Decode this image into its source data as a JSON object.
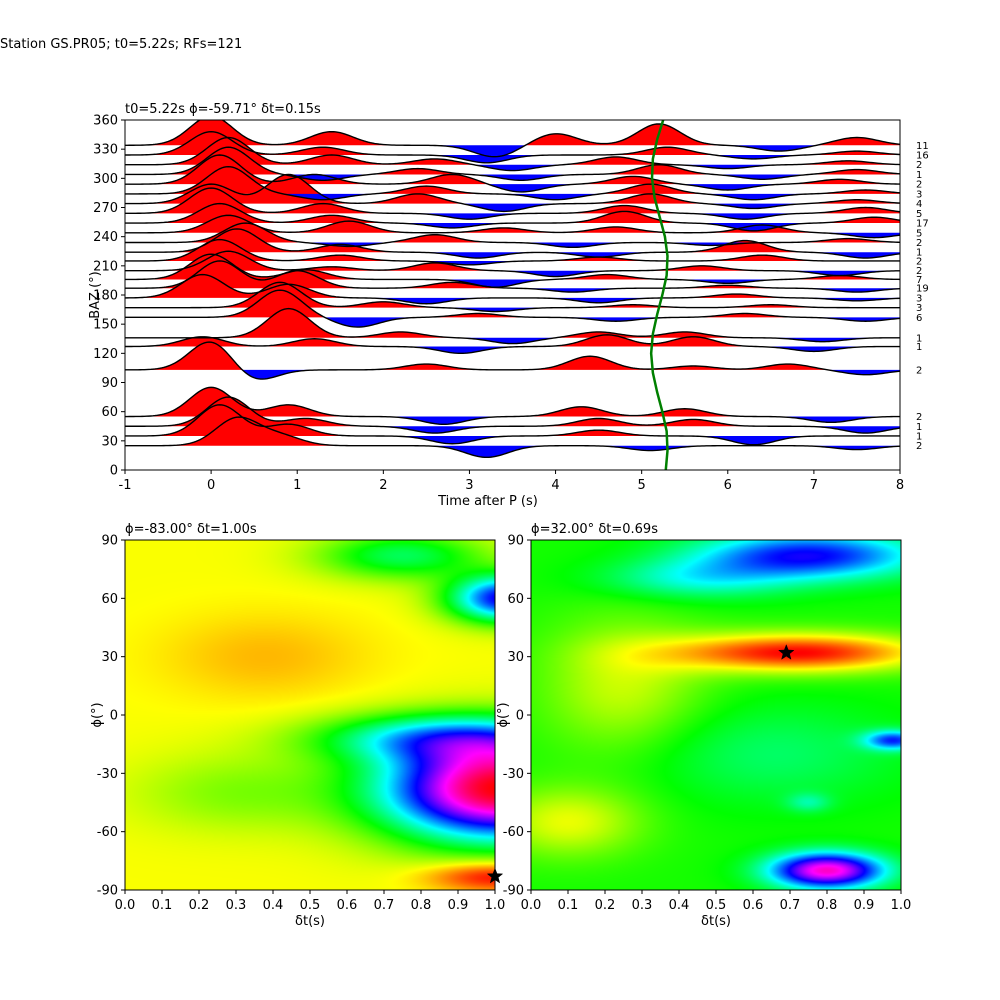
{
  "figure": {
    "title": "Station GS.PR05; t0=5.22s; RFs=121"
  },
  "chart_data": [
    {
      "type": "line",
      "id": "rf-traces",
      "title": "t0=5.22s ϕ=-59.71° δt=0.15s",
      "xlabel": "Time after P (s)",
      "ylabel": "BAZ (°)",
      "xlim": [
        -1,
        8
      ],
      "ylim": [
        0,
        360
      ],
      "xticks": [
        -1,
        0,
        1,
        2,
        3,
        4,
        5,
        6,
        7,
        8
      ],
      "yticks": [
        0,
        30,
        60,
        90,
        120,
        150,
        180,
        210,
        240,
        270,
        300,
        330,
        360
      ],
      "fill_positive_color": "#ff0000",
      "fill_negative_color": "#0000ff",
      "trace_color": "#000000",
      "grid": false,
      "traces": [
        {
          "baz": 25,
          "count": "2",
          "peaks": [
            [
              0.3,
              28
            ],
            [
              0.8,
              10
            ],
            [
              3.2,
              -12
            ],
            [
              5.1,
              -5
            ],
            [
              7.5,
              -4
            ]
          ]
        },
        {
          "baz": 35,
          "count": "1",
          "peaks": [
            [
              0.1,
              32
            ],
            [
              0.9,
              12
            ],
            [
              2.8,
              -8
            ],
            [
              4.5,
              6
            ],
            [
              6.3,
              -9
            ]
          ]
        },
        {
          "baz": 45,
          "count": "1",
          "peaks": [
            [
              0.2,
              30
            ],
            [
              1.1,
              8
            ],
            [
              2.6,
              -7
            ],
            [
              4.5,
              8
            ],
            [
              5.6,
              7
            ],
            [
              7.6,
              -7
            ]
          ]
        },
        {
          "baz": 55,
          "count": "2",
          "peaks": [
            [
              0.0,
              30
            ],
            [
              0.9,
              12
            ],
            [
              2.7,
              -8
            ],
            [
              4.3,
              10
            ],
            [
              5.5,
              8
            ],
            [
              7.2,
              -6
            ]
          ]
        },
        {
          "baz": 103,
          "count": "2",
          "peaks": [
            [
              0.0,
              30
            ],
            [
              0.5,
              -12
            ],
            [
              2.5,
              6
            ],
            [
              4.4,
              14
            ],
            [
              5.6,
              4
            ],
            [
              6.7,
              6
            ],
            [
              7.6,
              -5
            ]
          ]
        },
        {
          "baz": 127,
          "count": "1",
          "peaks": [
            [
              -0.1,
              10
            ],
            [
              1.2,
              8
            ],
            [
              2.9,
              -7
            ],
            [
              4.6,
              12
            ],
            [
              5.6,
              10
            ],
            [
              7.0,
              -5
            ]
          ]
        },
        {
          "baz": 136,
          "count": "1",
          "peaks": [
            [
              0.9,
              30
            ],
            [
              2.2,
              6
            ],
            [
              3.5,
              -6
            ],
            [
              4.5,
              6
            ],
            [
              5.5,
              6
            ],
            [
              7.1,
              -4
            ]
          ]
        },
        {
          "baz": 157,
          "count": "6",
          "peaks": [
            [
              0.8,
              28
            ],
            [
              1.7,
              -10
            ],
            [
              3.1,
              4
            ],
            [
              4.7,
              -4
            ],
            [
              6.2,
              4
            ],
            [
              7.6,
              -4
            ]
          ]
        },
        {
          "baz": 167,
          "count": "3",
          "peaks": [
            [
              0.8,
              26
            ],
            [
              2.0,
              6
            ],
            [
              3.3,
              -4
            ],
            [
              4.9,
              3
            ],
            [
              6.5,
              3
            ]
          ]
        },
        {
          "baz": 177,
          "count": "3",
          "peaks": [
            [
              -0.1,
              24
            ],
            [
              0.9,
              14
            ],
            [
              2.5,
              -6
            ],
            [
              4.5,
              -5
            ],
            [
              6.1,
              4
            ],
            [
              7.5,
              -3
            ]
          ]
        },
        {
          "baz": 187,
          "count": "19",
          "peaks": [
            [
              0.1,
              28
            ],
            [
              1.0,
              18
            ],
            [
              2.8,
              6
            ],
            [
              4.2,
              -4
            ],
            [
              6.0,
              3
            ],
            [
              7.5,
              -4
            ]
          ]
        },
        {
          "baz": 196,
          "count": "7",
          "peaks": [
            [
              0.0,
              26
            ],
            [
              1.1,
              10
            ],
            [
              3.3,
              -8
            ],
            [
              4.6,
              5
            ],
            [
              6.0,
              -4
            ],
            [
              7.3,
              4
            ]
          ]
        },
        {
          "baz": 205,
          "count": "2",
          "peaks": [
            [
              0.2,
              20
            ],
            [
              1.4,
              4
            ],
            [
              2.6,
              8
            ],
            [
              4.0,
              -6
            ],
            [
              5.7,
              5
            ],
            [
              7.3,
              -5
            ]
          ]
        },
        {
          "baz": 215,
          "count": "2",
          "peaks": [
            [
              0.1,
              22
            ],
            [
              1.5,
              6
            ],
            [
              3.0,
              -4
            ],
            [
              4.5,
              4
            ],
            [
              6.4,
              6
            ]
          ]
        },
        {
          "baz": 224,
          "count": "1",
          "peaks": [
            [
              0.3,
              24
            ],
            [
              1.5,
              8
            ],
            [
              3.1,
              -6
            ],
            [
              4.5,
              -5
            ],
            [
              6.2,
              12
            ],
            [
              7.6,
              -6
            ]
          ]
        },
        {
          "baz": 234,
          "count": "2",
          "peaks": [
            [
              0.4,
              20
            ],
            [
              1.6,
              -4
            ],
            [
              2.6,
              8
            ],
            [
              4.2,
              -5
            ],
            [
              5.8,
              -3
            ],
            [
              7.4,
              4
            ]
          ]
        },
        {
          "baz": 244,
          "count": "5",
          "peaks": [
            [
              0.2,
              18
            ],
            [
              1.6,
              12
            ],
            [
              3.4,
              5
            ],
            [
              4.7,
              6
            ],
            [
              6.4,
              8
            ],
            [
              7.7,
              -5
            ]
          ]
        },
        {
          "baz": 254,
          "count": "17",
          "peaks": [
            [
              0.1,
              20
            ],
            [
              1.4,
              8
            ],
            [
              2.8,
              -5
            ],
            [
              4.8,
              12
            ],
            [
              6.3,
              -8
            ],
            [
              7.7,
              6
            ]
          ]
        },
        {
          "baz": 264,
          "count": "5",
          "peaks": [
            [
              0.0,
              26
            ],
            [
              1.3,
              10
            ],
            [
              3.0,
              -6
            ],
            [
              4.8,
              8
            ],
            [
              6.2,
              -6
            ],
            [
              7.6,
              6
            ]
          ]
        },
        {
          "baz": 274,
          "count": "4",
          "peaks": [
            [
              0.0,
              20
            ],
            [
              0.9,
              30
            ],
            [
              2.4,
              10
            ],
            [
              3.4,
              -8
            ],
            [
              5.1,
              10
            ],
            [
              6.3,
              -5
            ],
            [
              7.5,
              4
            ]
          ]
        },
        {
          "baz": 284,
          "count": "3",
          "peaks": [
            [
              0.2,
              28
            ],
            [
              1.3,
              -6
            ],
            [
              2.5,
              8
            ],
            [
              4.0,
              -6
            ],
            [
              5.1,
              10
            ],
            [
              6.3,
              -6
            ],
            [
              7.6,
              4
            ]
          ]
        },
        {
          "baz": 294,
          "count": "2",
          "peaks": [
            [
              0.1,
              30
            ],
            [
              1.2,
              10
            ],
            [
              2.8,
              10
            ],
            [
              3.6,
              -8
            ],
            [
              4.9,
              8
            ],
            [
              6.0,
              -6
            ],
            [
              7.3,
              5
            ]
          ]
        },
        {
          "baz": 304,
          "count": "1",
          "peaks": [
            [
              0.2,
              28
            ],
            [
              1.3,
              -6
            ],
            [
              2.4,
              6
            ],
            [
              3.6,
              -6
            ],
            [
              5.2,
              10
            ],
            [
              6.4,
              -5
            ],
            [
              7.5,
              5
            ]
          ]
        },
        {
          "baz": 314,
          "count": "2",
          "peaks": [
            [
              0.2,
              28
            ],
            [
              1.4,
              10
            ],
            [
              2.6,
              6
            ],
            [
              3.5,
              -6
            ],
            [
              4.7,
              8
            ],
            [
              6.0,
              -4
            ],
            [
              7.4,
              4
            ]
          ]
        },
        {
          "baz": 324,
          "count": "16",
          "peaks": [
            [
              0.0,
              24
            ],
            [
              1.3,
              8
            ],
            [
              3.2,
              -8
            ],
            [
              5.3,
              8
            ],
            [
              6.3,
              -4
            ],
            [
              7.5,
              4
            ]
          ]
        },
        {
          "baz": 334,
          "count": "11",
          "peaks": [
            [
              0.0,
              30
            ],
            [
              1.4,
              14
            ],
            [
              3.3,
              -12
            ],
            [
              4.0,
              12
            ],
            [
              5.2,
              22
            ],
            [
              6.6,
              -6
            ],
            [
              7.5,
              8
            ]
          ]
        }
      ],
      "moveout_curve": {
        "color": "#008000",
        "baz": [
          0,
          20,
          40,
          60,
          80,
          100,
          120,
          140,
          160,
          180,
          200,
          220,
          240,
          260,
          280,
          300,
          320,
          340,
          360
        ],
        "time": [
          5.28,
          5.3,
          5.29,
          5.24,
          5.18,
          5.13,
          5.11,
          5.13,
          5.18,
          5.24,
          5.29,
          5.3,
          5.27,
          5.21,
          5.15,
          5.12,
          5.13,
          5.18,
          5.25
        ]
      }
    },
    {
      "type": "heatmap",
      "id": "grid-left",
      "title": "ϕ=-83.00° δt=1.00s",
      "xlabel": "δt(s)",
      "ylabel": "ϕ(°)",
      "xlim": [
        0,
        1
      ],
      "ylim": [
        -90,
        90
      ],
      "xticks": [
        0.0,
        0.1,
        0.2,
        0.3,
        0.4,
        0.5,
        0.6,
        0.7,
        0.8,
        0.9,
        1.0
      ],
      "yticks": [
        -90,
        -60,
        -30,
        0,
        30,
        60,
        90
      ],
      "colormap": "hsv",
      "best": {
        "dt": 1.0,
        "phi": -83.0
      },
      "background_level": 0.17,
      "features": [
        {
          "dt": 1.02,
          "phi": -38,
          "sdt": 0.32,
          "sphi": 26,
          "amp": 0.83
        },
        {
          "dt": 0.85,
          "phi": -12,
          "sdt": 0.32,
          "sphi": 12,
          "amp": 0.3
        },
        {
          "dt": 1.03,
          "phi": 60,
          "sdt": 0.15,
          "sphi": 12,
          "amp": 0.52
        },
        {
          "dt": 0.75,
          "phi": 82,
          "sdt": 0.22,
          "sphi": 12,
          "amp": 0.22
        },
        {
          "dt": 1.0,
          "phi": -83,
          "sdt": 0.18,
          "sphi": 8,
          "amp": -0.19
        },
        {
          "dt": 0.38,
          "phi": 30,
          "sdt": 0.28,
          "sphi": 22,
          "amp": -0.05
        },
        {
          "dt": 0.3,
          "phi": -40,
          "sdt": 0.28,
          "sphi": 20,
          "amp": 0.08
        }
      ]
    },
    {
      "type": "heatmap",
      "id": "grid-right",
      "title": "ϕ=32.00° δt=0.69s",
      "xlabel": "δt(s)",
      "ylabel": "ϕ(°)",
      "xlim": [
        0,
        1
      ],
      "ylim": [
        -90,
        90
      ],
      "xticks": [
        0.0,
        0.1,
        0.2,
        0.3,
        0.4,
        0.5,
        0.6,
        0.7,
        0.8,
        0.9,
        1.0
      ],
      "yticks": [
        -90,
        -60,
        -30,
        0,
        30,
        60,
        90
      ],
      "colormap": "hsv",
      "best": {
        "dt": 0.69,
        "phi": 32.0
      },
      "background_level": 0.32,
      "features": [
        {
          "dt": 0.72,
          "phi": 32,
          "sdt": 0.35,
          "sphi": 10,
          "amp": -0.32
        },
        {
          "dt": 0.25,
          "phi": 15,
          "sdt": 0.22,
          "sphi": 35,
          "amp": -0.12
        },
        {
          "dt": 0.1,
          "phi": -55,
          "sdt": 0.2,
          "sphi": 18,
          "amp": -0.14
        },
        {
          "dt": 0.75,
          "phi": 82,
          "sdt": 0.3,
          "sphi": 12,
          "amp": 0.35
        },
        {
          "dt": 0.45,
          "phi": 70,
          "sdt": 0.25,
          "sphi": 10,
          "amp": 0.15
        },
        {
          "dt": 0.8,
          "phi": -80,
          "sdt": 0.15,
          "sphi": 9,
          "amp": 0.55
        },
        {
          "dt": 0.98,
          "phi": -13,
          "sdt": 0.08,
          "sphi": 5,
          "amp": 0.3
        },
        {
          "dt": 0.75,
          "phi": -45,
          "sdt": 0.06,
          "sphi": 5,
          "amp": 0.1
        },
        {
          "dt": 0.65,
          "phi": -20,
          "sdt": 0.35,
          "sphi": 25,
          "amp": 0.08
        }
      ]
    }
  ]
}
